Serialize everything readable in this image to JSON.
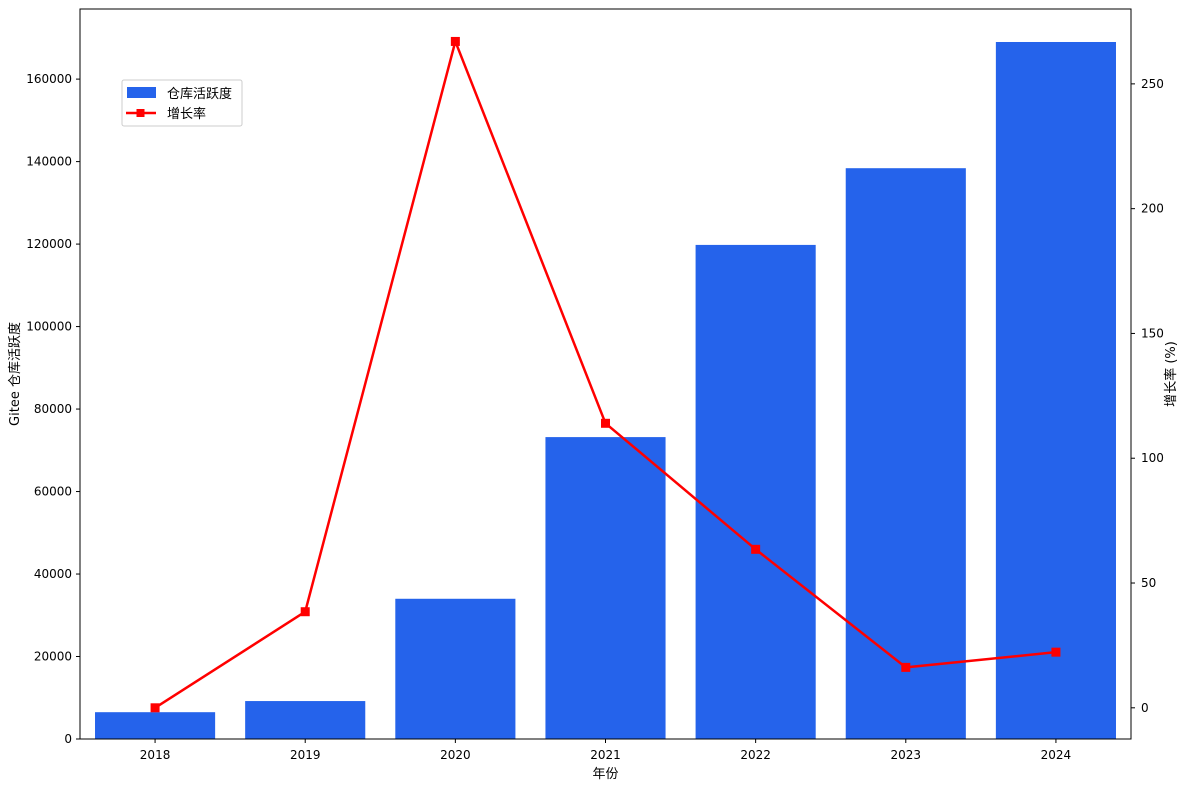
{
  "chart_data": {
    "type": "bar",
    "categories": [
      "2018",
      "2019",
      "2020",
      "2021",
      "2022",
      "2023",
      "2024"
    ],
    "xlabel": "年份",
    "ylabel": "Gitee 仓库活跃度",
    "y2label": "增长率 (%)",
    "ylim": [
      0,
      177000
    ],
    "y2lim": [
      -12.5,
      280
    ],
    "yticks": [
      "0",
      "20000",
      "40000",
      "60000",
      "80000",
      "100000",
      "120000",
      "140000",
      "160000"
    ],
    "y2ticks": [
      "0",
      "50",
      "100",
      "150",
      "200",
      "250"
    ],
    "grid": false,
    "legend_position": "top-left",
    "series": [
      {
        "name": "仓库活跃度",
        "kind": "bar",
        "axis": "left",
        "color": "#2563eb",
        "values": [
          6500,
          9200,
          34000,
          73200,
          119800,
          138400,
          169000
        ]
      },
      {
        "name": "增长率",
        "kind": "line",
        "axis": "right",
        "color": "#ff0000",
        "marker": "square",
        "values": [
          0,
          38.5,
          267,
          114,
          63.5,
          16.2,
          22.3
        ]
      }
    ]
  }
}
